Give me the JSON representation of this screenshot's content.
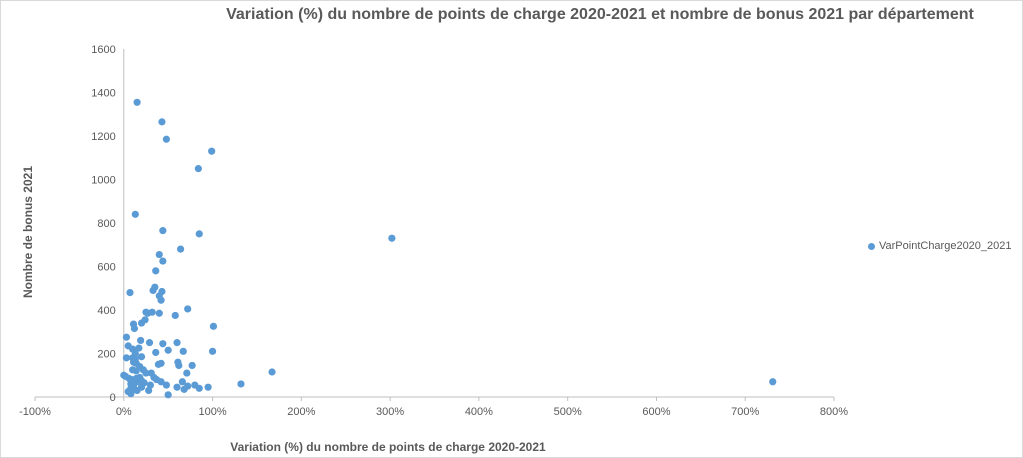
{
  "chart_data": {
    "type": "scatter",
    "title": "Variation (%) du nombre de points de charge 2020-2021 et nombre de bonus 2021 par département",
    "xlabel": "Variation (%) du nombre de points de charge 2020-2021",
    "ylabel": "Nombre de bonus 2021",
    "xlim": [
      -1,
      8
    ],
    "ylim": [
      0,
      1600
    ],
    "x_ticks": [
      -1,
      0,
      1,
      2,
      3,
      4,
      5,
      6,
      7,
      8
    ],
    "x_tick_labels": [
      "-100%",
      "0%",
      "100%",
      "200%",
      "300%",
      "400%",
      "500%",
      "600%",
      "700%",
      "800%"
    ],
    "y_ticks": [
      0,
      200,
      400,
      600,
      800,
      1000,
      1200,
      1400,
      1600
    ],
    "y_tick_labels": [
      "0",
      "200",
      "400",
      "600",
      "800",
      "1000",
      "1200",
      "1400",
      "1600"
    ],
    "grid": false,
    "legend_position": "right",
    "colors": {
      "series": "#5b9bd5",
      "axis": "#bfbfbf",
      "text": "#595959"
    },
    "series": [
      {
        "name": "VarPointCharge2020_2021",
        "points": [
          [
            0.15,
            1355
          ],
          [
            0.43,
            1265
          ],
          [
            0.48,
            1185
          ],
          [
            0.99,
            1130
          ],
          [
            0.84,
            1050
          ],
          [
            0.13,
            840
          ],
          [
            0.44,
            765
          ],
          [
            0.85,
            750
          ],
          [
            3.02,
            730
          ],
          [
            0.64,
            680
          ],
          [
            0.4,
            655
          ],
          [
            0.44,
            625
          ],
          [
            0.36,
            580
          ],
          [
            0.07,
            480
          ],
          [
            0.33,
            490
          ],
          [
            0.35,
            505
          ],
          [
            0.4,
            465
          ],
          [
            0.43,
            485
          ],
          [
            0.42,
            445
          ],
          [
            0.72,
            405
          ],
          [
            0.25,
            390
          ],
          [
            0.32,
            390
          ],
          [
            0.27,
            385
          ],
          [
            0.4,
            385
          ],
          [
            0.58,
            375
          ],
          [
            0.24,
            355
          ],
          [
            0.2,
            340
          ],
          [
            0.11,
            335
          ],
          [
            1.01,
            325
          ],
          [
            0.12,
            315
          ],
          [
            0.03,
            275
          ],
          [
            0.19,
            260
          ],
          [
            0.29,
            250
          ],
          [
            0.44,
            245
          ],
          [
            0.6,
            250
          ],
          [
            0.05,
            235
          ],
          [
            0.1,
            220
          ],
          [
            0.17,
            225
          ],
          [
            0.13,
            200
          ],
          [
            0.36,
            205
          ],
          [
            0.5,
            215
          ],
          [
            0.67,
            210
          ],
          [
            1.0,
            210
          ],
          [
            0.03,
            180
          ],
          [
            0.1,
            180
          ],
          [
            0.13,
            175
          ],
          [
            0.2,
            185
          ],
          [
            0.11,
            160
          ],
          [
            0.14,
            155
          ],
          [
            0.18,
            140
          ],
          [
            0.42,
            155
          ],
          [
            0.39,
            150
          ],
          [
            0.61,
            160
          ],
          [
            0.62,
            145
          ],
          [
            0.77,
            145
          ],
          [
            0.1,
            125
          ],
          [
            0.14,
            120
          ],
          [
            0.22,
            125
          ],
          [
            0.25,
            110
          ],
          [
            0.31,
            110
          ],
          [
            0.71,
            110
          ],
          [
            1.67,
            115
          ],
          [
            0.0,
            100
          ],
          [
            0.02,
            95
          ],
          [
            0.06,
            85
          ],
          [
            0.09,
            80
          ],
          [
            0.14,
            85
          ],
          [
            0.18,
            90
          ],
          [
            0.34,
            90
          ],
          [
            0.37,
            80
          ],
          [
            0.42,
            70
          ],
          [
            0.08,
            60
          ],
          [
            0.11,
            55
          ],
          [
            0.16,
            70
          ],
          [
            0.2,
            75
          ],
          [
            0.23,
            65
          ],
          [
            0.66,
            70
          ],
          [
            0.8,
            55
          ],
          [
            1.32,
            60
          ],
          [
            7.31,
            70
          ],
          [
            0.08,
            40
          ],
          [
            0.12,
            35
          ],
          [
            0.2,
            45
          ],
          [
            0.28,
            30
          ],
          [
            0.48,
            55
          ],
          [
            0.6,
            45
          ],
          [
            0.68,
            35
          ],
          [
            0.85,
            40
          ],
          [
            0.95,
            45
          ],
          [
            0.72,
            50
          ],
          [
            0.05,
            25
          ],
          [
            0.08,
            15
          ],
          [
            0.15,
            30
          ],
          [
            0.5,
            10
          ],
          [
            0.3,
            55
          ]
        ]
      }
    ]
  }
}
